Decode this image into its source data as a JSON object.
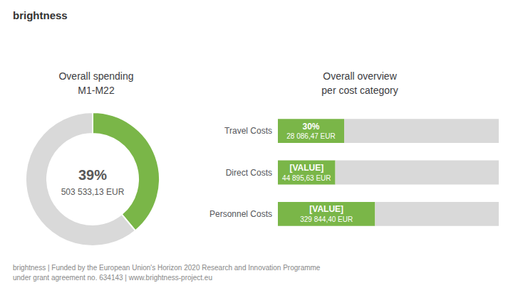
{
  "chart_data": [
    {
      "type": "pie",
      "title": "Overall spending\nM1-M22",
      "categories": [
        null,
        null
      ],
      "values": [
        39,
        61
      ],
      "colors": [
        "#7ab648",
        "#d9d9d9"
      ],
      "annotations": [
        "39%",
        "503 533,13 EUR"
      ]
    },
    {
      "type": "bar",
      "title": "Overall overview\nper cost category",
      "orientation": "horizontal",
      "stacked": true,
      "data_labels": true,
      "tick_labels": "y",
      "grid": false,
      "categories": [
        "Travel Costs",
        "Direct Costs",
        "Personnel Costs"
      ],
      "xlim": [
        0,
        100
      ],
      "series": [
        {
          "color": "#7ab648",
          "values": [
            30,
            26,
            44
          ],
          "value_labels": [
            "30%",
            "[VALUE]",
            "[VALUE]"
          ],
          "value_sublabels": [
            "28 086,47 EUR",
            "44 895,63 EUR",
            "329 844,40 EUR"
          ]
        },
        {
          "color": "#d9d9d9",
          "values": [
            70,
            74,
            56
          ]
        }
      ]
    }
  ],
  "annotations": [
    "brightness",
    "brightness | Funded by the European Union's Horizon 2020 Research and Innovation Programme",
    "under grant agreement no. 634143 | www.brightness-project.eu"
  ]
}
